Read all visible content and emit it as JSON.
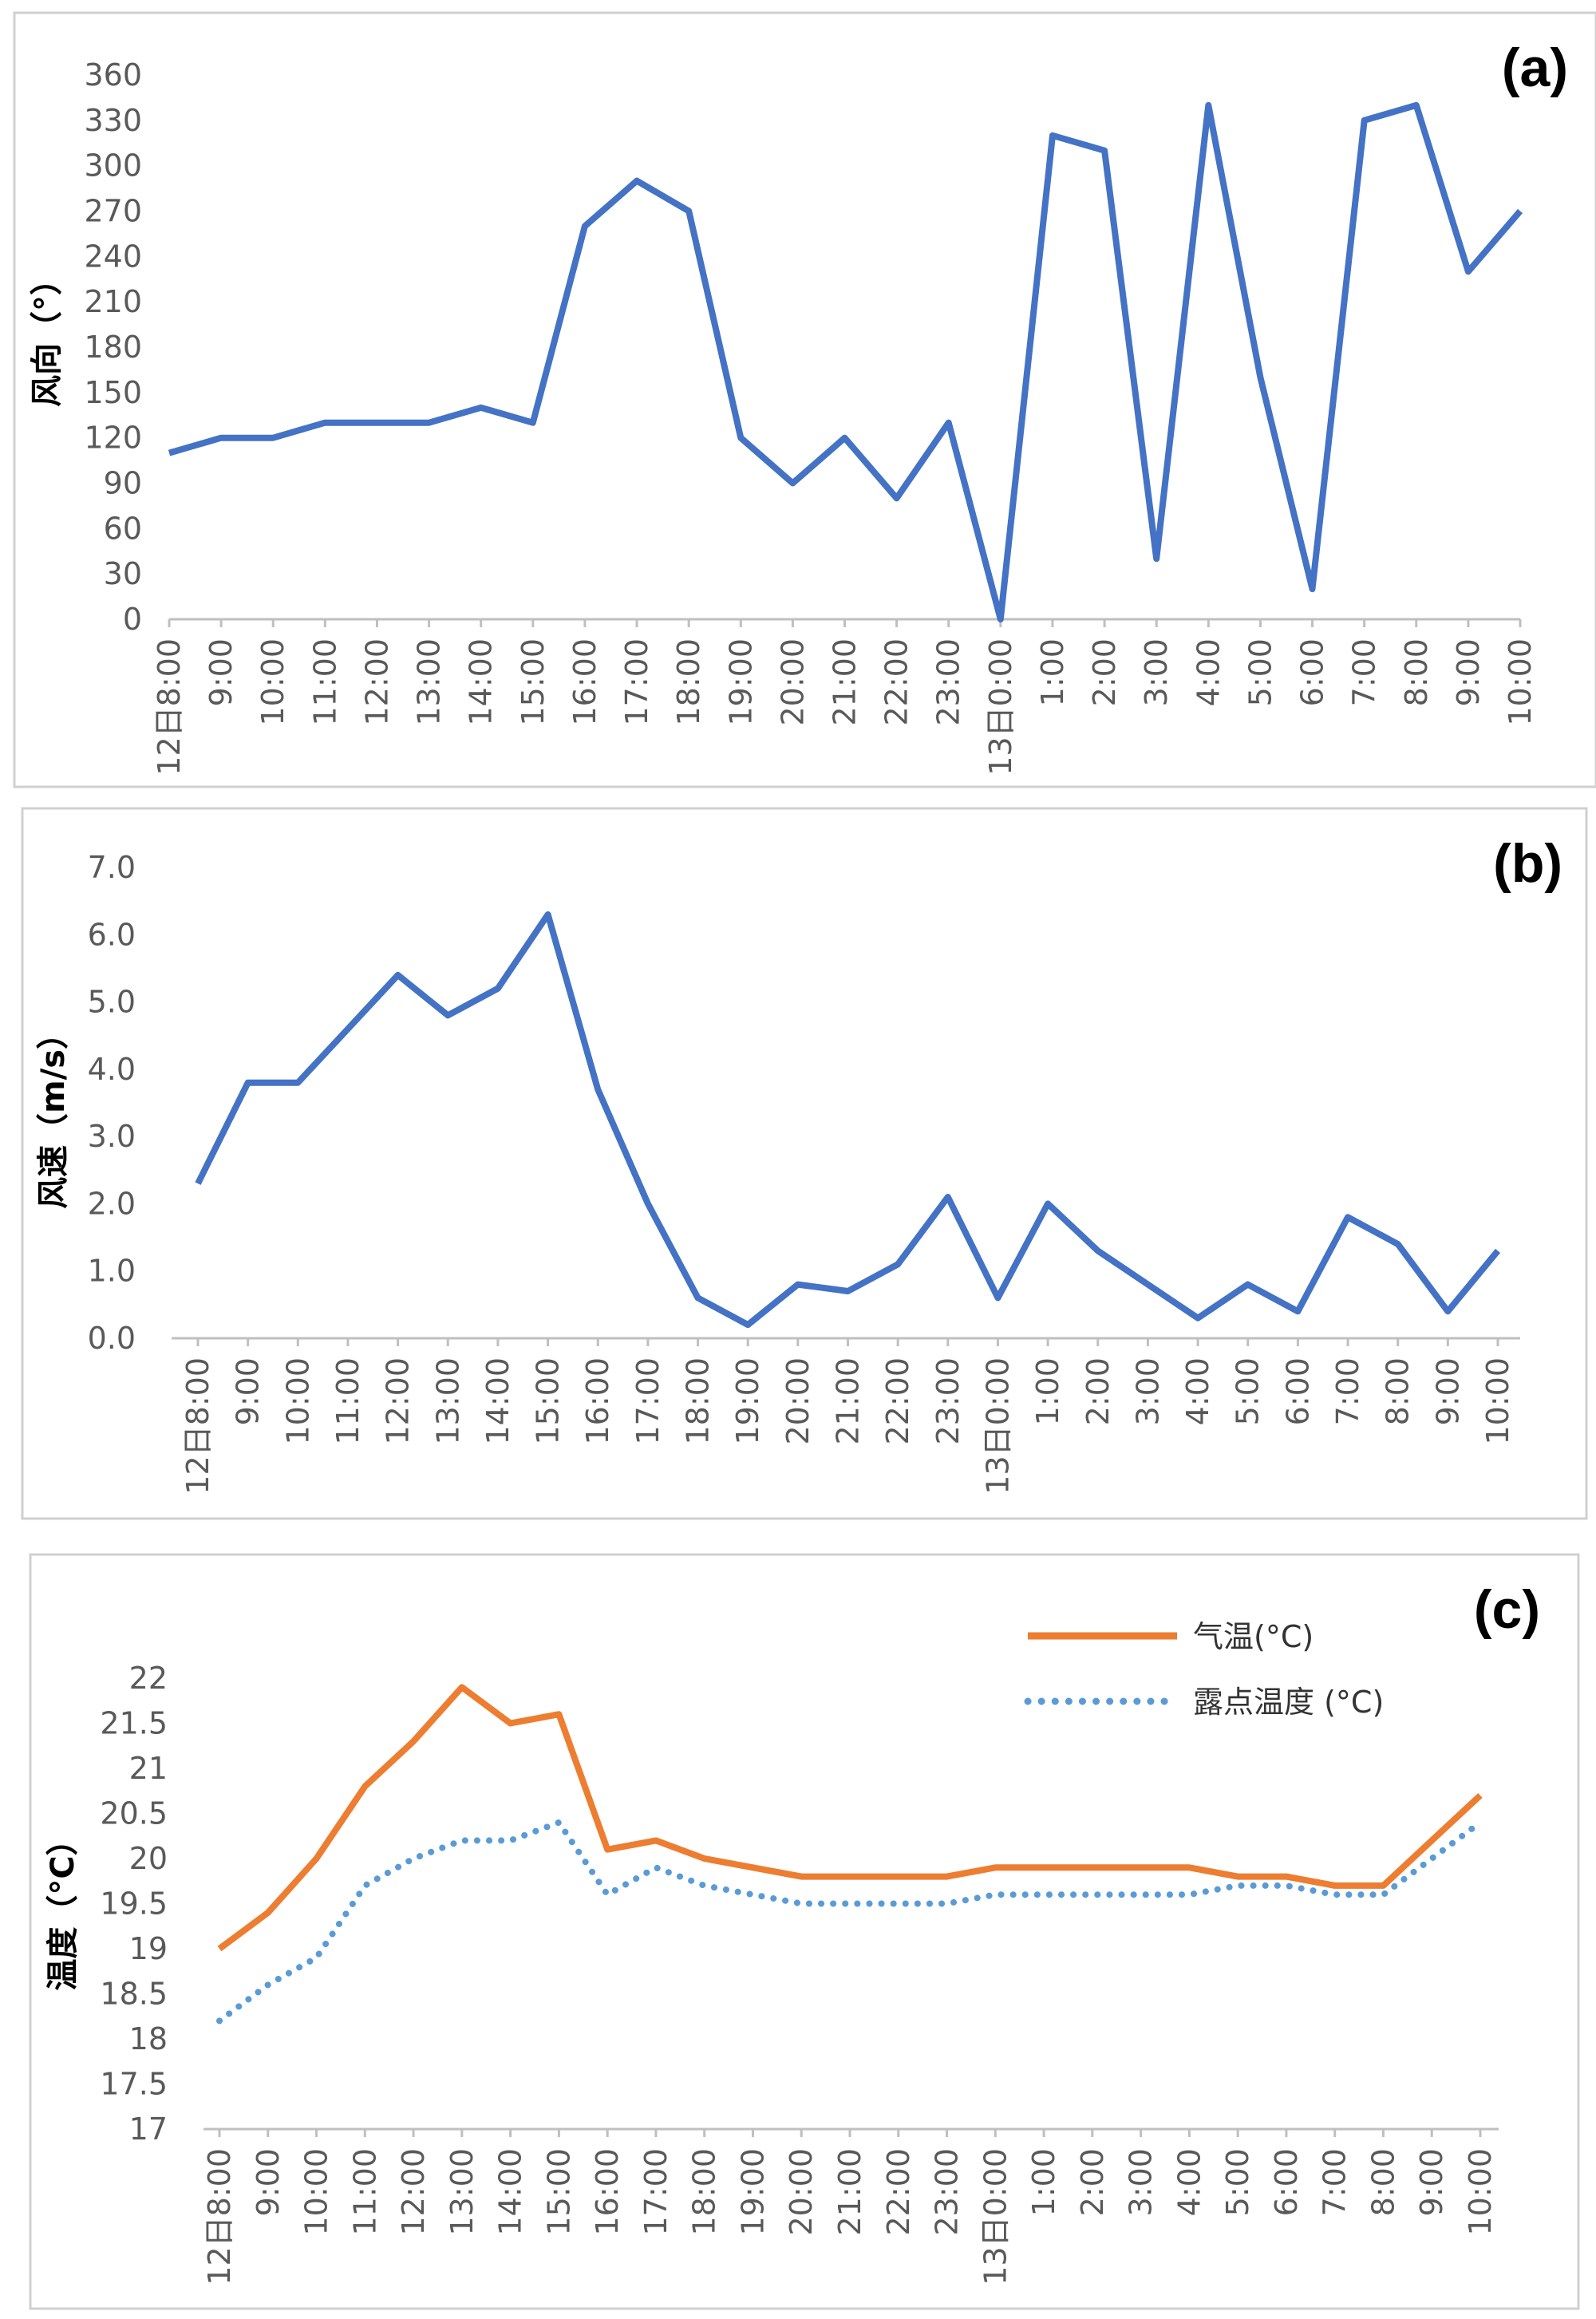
{
  "chart_data": [
    {
      "panel_label": "(a)",
      "type": "line",
      "ylabel": "风向（°）",
      "ylim": [
        0,
        360
      ],
      "yticks": [
        "0",
        "30",
        "60",
        "90",
        "120",
        "150",
        "180",
        "210",
        "240",
        "270",
        "300",
        "330",
        "360"
      ],
      "categories": [
        "12日8:00",
        "9:00",
        "10:00",
        "11:00",
        "12:00",
        "13:00",
        "14:00",
        "15:00",
        "16:00",
        "17:00",
        "18:00",
        "19:00",
        "20:00",
        "21:00",
        "22:00",
        "23:00",
        "13日0:00",
        "1:00",
        "2:00",
        "3:00",
        "4:00",
        "5:00",
        "6:00",
        "7:00",
        "8:00",
        "9:00",
        "10:00"
      ],
      "series": [
        {
          "name": "风向",
          "color": "#4472c4",
          "style": "solid",
          "values": [
            110,
            120,
            120,
            130,
            130,
            130,
            140,
            130,
            260,
            290,
            270,
            120,
            90,
            120,
            80,
            130,
            0,
            320,
            310,
            40,
            340,
            160,
            20,
            330,
            340,
            230,
            270
          ]
        }
      ]
    },
    {
      "panel_label": "(b)",
      "type": "line",
      "ylabel": "风速（m/s）",
      "ylim": [
        0,
        7
      ],
      "yticks": [
        "0.0",
        "1.0",
        "2.0",
        "3.0",
        "4.0",
        "5.0",
        "6.0",
        "7.0"
      ],
      "categories": [
        "12日8:00",
        "9:00",
        "10:00",
        "11:00",
        "12:00",
        "13:00",
        "14:00",
        "15:00",
        "16:00",
        "17:00",
        "18:00",
        "19:00",
        "20:00",
        "21:00",
        "22:00",
        "23:00",
        "13日0:00",
        "1:00",
        "2:00",
        "3:00",
        "4:00",
        "5:00",
        "6:00",
        "7:00",
        "8:00",
        "9:00",
        "10:00"
      ],
      "series": [
        {
          "name": "风速",
          "color": "#4472c4",
          "style": "solid",
          "values": [
            2.3,
            3.8,
            3.8,
            4.6,
            5.4,
            4.8,
            5.2,
            6.3,
            3.7,
            2.0,
            0.6,
            0.2,
            0.8,
            0.7,
            1.1,
            2.1,
            0.6,
            2.0,
            1.3,
            0.8,
            0.3,
            0.8,
            0.4,
            1.8,
            1.4,
            0.4,
            1.3
          ]
        }
      ]
    },
    {
      "panel_label": "(c)",
      "type": "line",
      "ylabel": "温度（°C）",
      "ylim": [
        17,
        22
      ],
      "yticks": [
        "17",
        "17.5",
        "18",
        "18.5",
        "19",
        "19.5",
        "20",
        "20.5",
        "21",
        "21.5",
        "22"
      ],
      "categories": [
        "12日8:00",
        "9:00",
        "10:00",
        "11:00",
        "12:00",
        "13:00",
        "14:00",
        "15:00",
        "16:00",
        "17:00",
        "18:00",
        "19:00",
        "20:00",
        "21:00",
        "22:00",
        "23:00",
        "13日0:00",
        "1:00",
        "2:00",
        "3:00",
        "4:00",
        "5:00",
        "6:00",
        "7:00",
        "8:00",
        "9:00",
        "10:00"
      ],
      "legend_position": "top-right",
      "series": [
        {
          "name": "气温(°C)",
          "color": "#ed7d31",
          "style": "solid",
          "values": [
            19.0,
            19.4,
            20.0,
            20.8,
            21.3,
            21.9,
            21.5,
            21.6,
            20.1,
            20.2,
            20.0,
            19.9,
            19.8,
            19.8,
            19.8,
            19.8,
            19.9,
            19.9,
            19.9,
            19.9,
            19.9,
            19.8,
            19.8,
            19.7,
            19.7,
            20.2,
            20.7
          ]
        },
        {
          "name": "露点温度 (°C)",
          "color": "#5b9bd5",
          "style": "dotted",
          "values": [
            18.2,
            18.6,
            18.9,
            19.7,
            20.0,
            20.2,
            20.2,
            20.4,
            19.6,
            19.9,
            19.7,
            19.6,
            19.5,
            19.5,
            19.5,
            19.5,
            19.6,
            19.6,
            19.6,
            19.6,
            19.6,
            19.7,
            19.7,
            19.6,
            19.6,
            20.0,
            20.4
          ]
        }
      ]
    }
  ]
}
